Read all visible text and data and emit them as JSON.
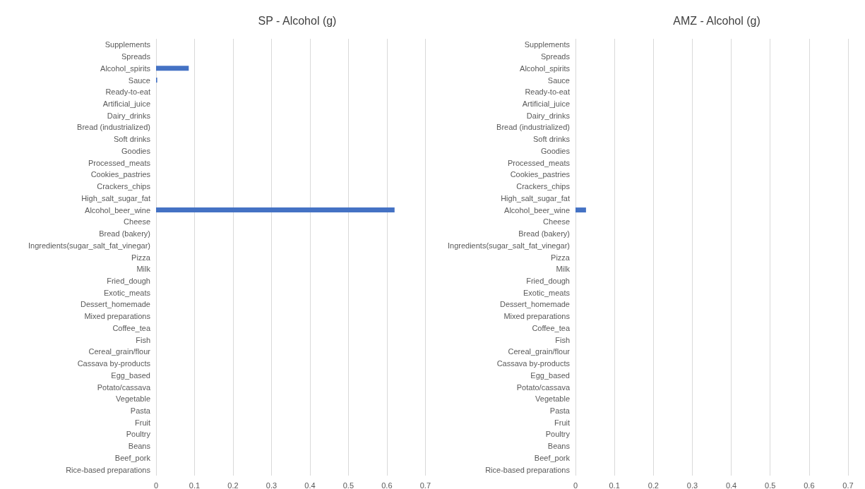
{
  "chart_data": [
    {
      "type": "bar",
      "orientation": "horizontal",
      "title": "SP - Alcohol (g)",
      "categories": [
        "Supplements",
        "Spreads",
        "Alcohol_spirits",
        "Sauce",
        "Ready-to-eat",
        "Artificial_juice",
        "Dairy_drinks",
        "Bread (industrialized)",
        "Soft drinks",
        "Goodies",
        "Processed_meats",
        "Cookies_pastries",
        "Crackers_chips",
        "High_salt_sugar_fat",
        "Alcohol_beer_wine",
        "Cheese",
        "Bread (bakery)",
        "Ingredients(sugar_salt_fat_vinegar)",
        "Pizza",
        "Milk",
        "Fried_dough",
        "Exotic_meats",
        "Dessert_homemade",
        "Mixed preparations",
        "Coffee_tea",
        "Fish",
        "Cereal_grain/flour",
        "Cassava by-products",
        "Egg_based",
        "Potato/cassava",
        "Vegetable",
        "Pasta",
        "Fruit",
        "Poultry",
        "Beans",
        "Beef_pork",
        "Rice-based preparations"
      ],
      "values": [
        0,
        0,
        0.085,
        0.003,
        0,
        0,
        0,
        0,
        0,
        0,
        0,
        0,
        0,
        0,
        0.62,
        0,
        0,
        0,
        0,
        0,
        0,
        0,
        0,
        0,
        0,
        0,
        0,
        0,
        0,
        0,
        0,
        0,
        0,
        0,
        0,
        0,
        0
      ],
      "color": "#4472c4",
      "xlim": [
        0,
        0.7
      ],
      "xticks": [
        0,
        0.1,
        0.2,
        0.3,
        0.4,
        0.5,
        0.6,
        0.7
      ],
      "grid": "x"
    },
    {
      "type": "bar",
      "orientation": "horizontal",
      "title": "AMZ - Alcohol (g)",
      "categories": [
        "Supplements",
        "Spreads",
        "Alcohol_spirits",
        "Sauce",
        "Ready-to-eat",
        "Artificial_juice",
        "Dairy_drinks",
        "Bread (industrialized)",
        "Soft drinks",
        "Goodies",
        "Processed_meats",
        "Cookies_pastries",
        "Crackers_chips",
        "High_salt_sugar_fat",
        "Alcohol_beer_wine",
        "Cheese",
        "Bread (bakery)",
        "Ingredients(sugar_salt_fat_vinegar)",
        "Pizza",
        "Milk",
        "Fried_dough",
        "Exotic_meats",
        "Dessert_homemade",
        "Mixed preparations",
        "Coffee_tea",
        "Fish",
        "Cereal_grain/flour",
        "Cassava by-products",
        "Egg_based",
        "Potato/cassava",
        "Vegetable",
        "Pasta",
        "Fruit",
        "Poultry",
        "Beans",
        "Beef_pork",
        "Rice-based preparations"
      ],
      "values": [
        0,
        0,
        0,
        0,
        0,
        0,
        0,
        0,
        0,
        0,
        0,
        0,
        0,
        0,
        0.027,
        0,
        0,
        0,
        0,
        0,
        0,
        0,
        0,
        0,
        0,
        0,
        0,
        0,
        0,
        0,
        0,
        0,
        0,
        0,
        0,
        0,
        0
      ],
      "color": "#4472c4",
      "xlim": [
        0,
        0.7
      ],
      "xticks": [
        0,
        0.1,
        0.2,
        0.3,
        0.4,
        0.5,
        0.6,
        0.7
      ],
      "grid": "x"
    }
  ]
}
